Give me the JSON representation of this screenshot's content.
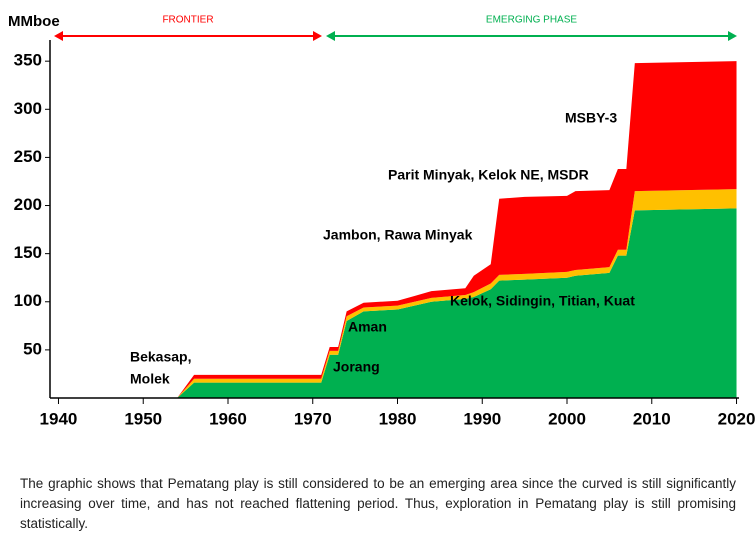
{
  "chart_data": {
    "type": "area",
    "stacked": true,
    "ylabel": "MMboe",
    "x": [
      1954,
      1956,
      1971,
      1972,
      1973,
      1974,
      1976,
      1980,
      1982,
      1984,
      1988,
      1989,
      1991,
      1992,
      1995,
      2000,
      2001,
      2005,
      2006,
      2007,
      2008,
      2020
    ],
    "series": [
      {
        "color": "#00b050",
        "values": [
          0,
          16,
          16,
          45,
          45,
          80,
          90,
          92,
          96,
          100,
          103,
          105,
          113,
          122,
          123,
          125,
          127,
          130,
          148,
          148,
          195,
          197
        ]
      },
      {
        "color": "#ffc000",
        "values": [
          0,
          4,
          4,
          4,
          4,
          5,
          4,
          4,
          4,
          4,
          4,
          5,
          6,
          6,
          6,
          6,
          6,
          6,
          6,
          6,
          20,
          20
        ]
      },
      {
        "color": "#ff0000",
        "values": [
          0,
          4,
          4,
          4,
          4,
          5,
          5,
          5,
          6,
          7,
          7,
          17,
          20,
          79,
          80,
          79,
          82,
          80,
          84,
          84,
          133,
          133
        ]
      }
    ],
    "xlim": [
      1939,
      2021
    ],
    "ylim": [
      0,
      372
    ],
    "xticks": [
      1940,
      1950,
      1960,
      1970,
      1980,
      1990,
      2000,
      2010,
      2020
    ],
    "yticks": [
      50,
      100,
      150,
      200,
      250,
      300,
      350
    ],
    "phases": [
      "FRONTIER",
      "EMERGING PHASE"
    ],
    "annotations": [
      "Bekasap,",
      "Molek",
      "Jorang",
      "Aman",
      "Kelok, Sidingin, Titian, Kuat",
      "Jambon, Rawa Minyak",
      "Parit Minyak, Kelok NE, MSDR",
      "MSBY-3"
    ]
  },
  "caption": "The graphic shows that Pematang play is still considered to be an emerging area since the curved is still significantly increasing over time, and has not reached flattening period. Thus, exploration in Pematang play is still promising statistically."
}
